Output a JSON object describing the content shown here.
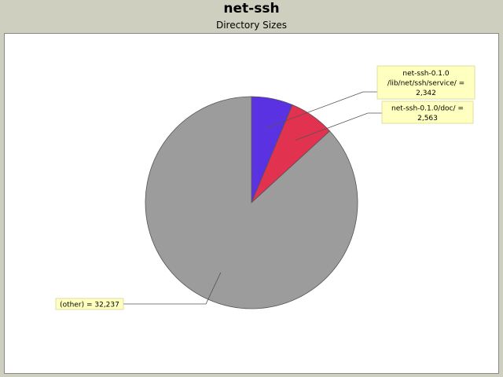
{
  "chart_data": {
    "type": "pie",
    "title": "net-ssh",
    "subtitle": "Directory Sizes",
    "slices": [
      {
        "label_lines": [
          "net-ssh-0.1.0",
          "/lib/net/ssh/service/ =",
          "2,342"
        ],
        "value": 2342,
        "color": "#5b32e1"
      },
      {
        "label_lines": [
          "net-ssh-0.1.0/doc/ =",
          "2,563"
        ],
        "value": 2563,
        "color": "#e1324f"
      },
      {
        "label_lines": [
          "(other) = 32,237"
        ],
        "value": 32237,
        "color": "#9c9c9c"
      }
    ],
    "label_background": "#ffffc0",
    "label_border": "#d8d890",
    "outline_color": "#555555",
    "start": "12 o'clock, clockwise",
    "legend": "none"
  }
}
